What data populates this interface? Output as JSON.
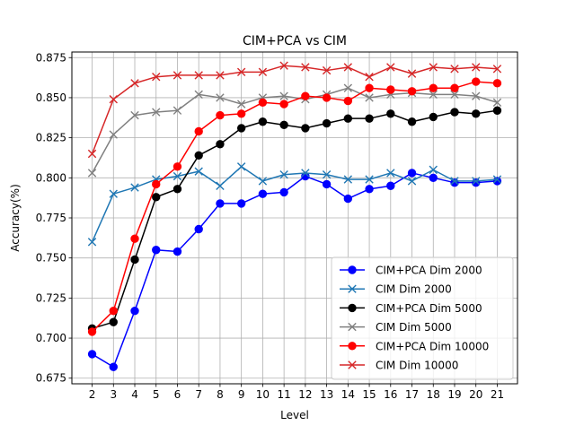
{
  "chart_data": {
    "type": "line",
    "title": "CIM+PCA vs CIM",
    "xlabel": "Level",
    "ylabel": "Accuracy(%)",
    "x": [
      2,
      3,
      4,
      5,
      6,
      7,
      8,
      9,
      10,
      11,
      12,
      13,
      14,
      15,
      16,
      17,
      18,
      19,
      20,
      21
    ],
    "xlim": [
      1.05,
      21.95
    ],
    "ylim": [
      0.6715,
      0.8785
    ],
    "yticks": [
      0.675,
      0.7,
      0.725,
      0.75,
      0.775,
      0.8,
      0.825,
      0.85,
      0.875
    ],
    "ytick_labels": [
      "0.675",
      "0.700",
      "0.725",
      "0.750",
      "0.775",
      "0.800",
      "0.825",
      "0.850",
      "0.875"
    ],
    "grid": true,
    "legend_position": "bottom-right",
    "series": [
      {
        "name": "CIM+PCA Dim 2000",
        "color": "#0000ff",
        "marker": "circle",
        "values": [
          0.69,
          0.682,
          0.717,
          0.755,
          0.754,
          0.768,
          0.784,
          0.784,
          0.79,
          0.791,
          0.801,
          0.796,
          0.787,
          0.793,
          0.795,
          0.803,
          0.8,
          0.797,
          0.797,
          0.798
        ]
      },
      {
        "name": "CIM Dim 2000",
        "color": "#1f77b4",
        "marker": "x",
        "values": [
          0.76,
          0.79,
          0.794,
          0.799,
          0.801,
          0.804,
          0.795,
          0.807,
          0.798,
          0.802,
          0.803,
          0.802,
          0.799,
          0.799,
          0.803,
          0.798,
          0.805,
          0.798,
          0.798,
          0.799
        ]
      },
      {
        "name": "CIM+PCA Dim 5000",
        "color": "#000000",
        "marker": "circle",
        "values": [
          0.706,
          0.71,
          0.749,
          0.788,
          0.793,
          0.814,
          0.821,
          0.831,
          0.835,
          0.833,
          0.831,
          0.834,
          0.837,
          0.837,
          0.84,
          0.835,
          0.838,
          0.841,
          0.84,
          0.842
        ]
      },
      {
        "name": "CIM Dim 5000",
        "color": "#808080",
        "marker": "x",
        "values": [
          0.803,
          0.827,
          0.839,
          0.841,
          0.842,
          0.852,
          0.85,
          0.846,
          0.85,
          0.851,
          0.849,
          0.852,
          0.856,
          0.85,
          0.852,
          0.853,
          0.852,
          0.852,
          0.851,
          0.847
        ]
      },
      {
        "name": "CIM+PCA Dim 10000",
        "color": "#ff0000",
        "marker": "circle",
        "values": [
          0.704,
          0.717,
          0.762,
          0.796,
          0.807,
          0.829,
          0.839,
          0.84,
          0.847,
          0.846,
          0.851,
          0.85,
          0.848,
          0.856,
          0.855,
          0.854,
          0.856,
          0.856,
          0.86,
          0.859
        ]
      },
      {
        "name": "CIM Dim 10000",
        "color": "#d62728",
        "marker": "x",
        "values": [
          0.815,
          0.849,
          0.859,
          0.863,
          0.864,
          0.864,
          0.864,
          0.866,
          0.866,
          0.87,
          0.869,
          0.867,
          0.869,
          0.863,
          0.869,
          0.865,
          0.869,
          0.868,
          0.869,
          0.868
        ]
      }
    ]
  }
}
